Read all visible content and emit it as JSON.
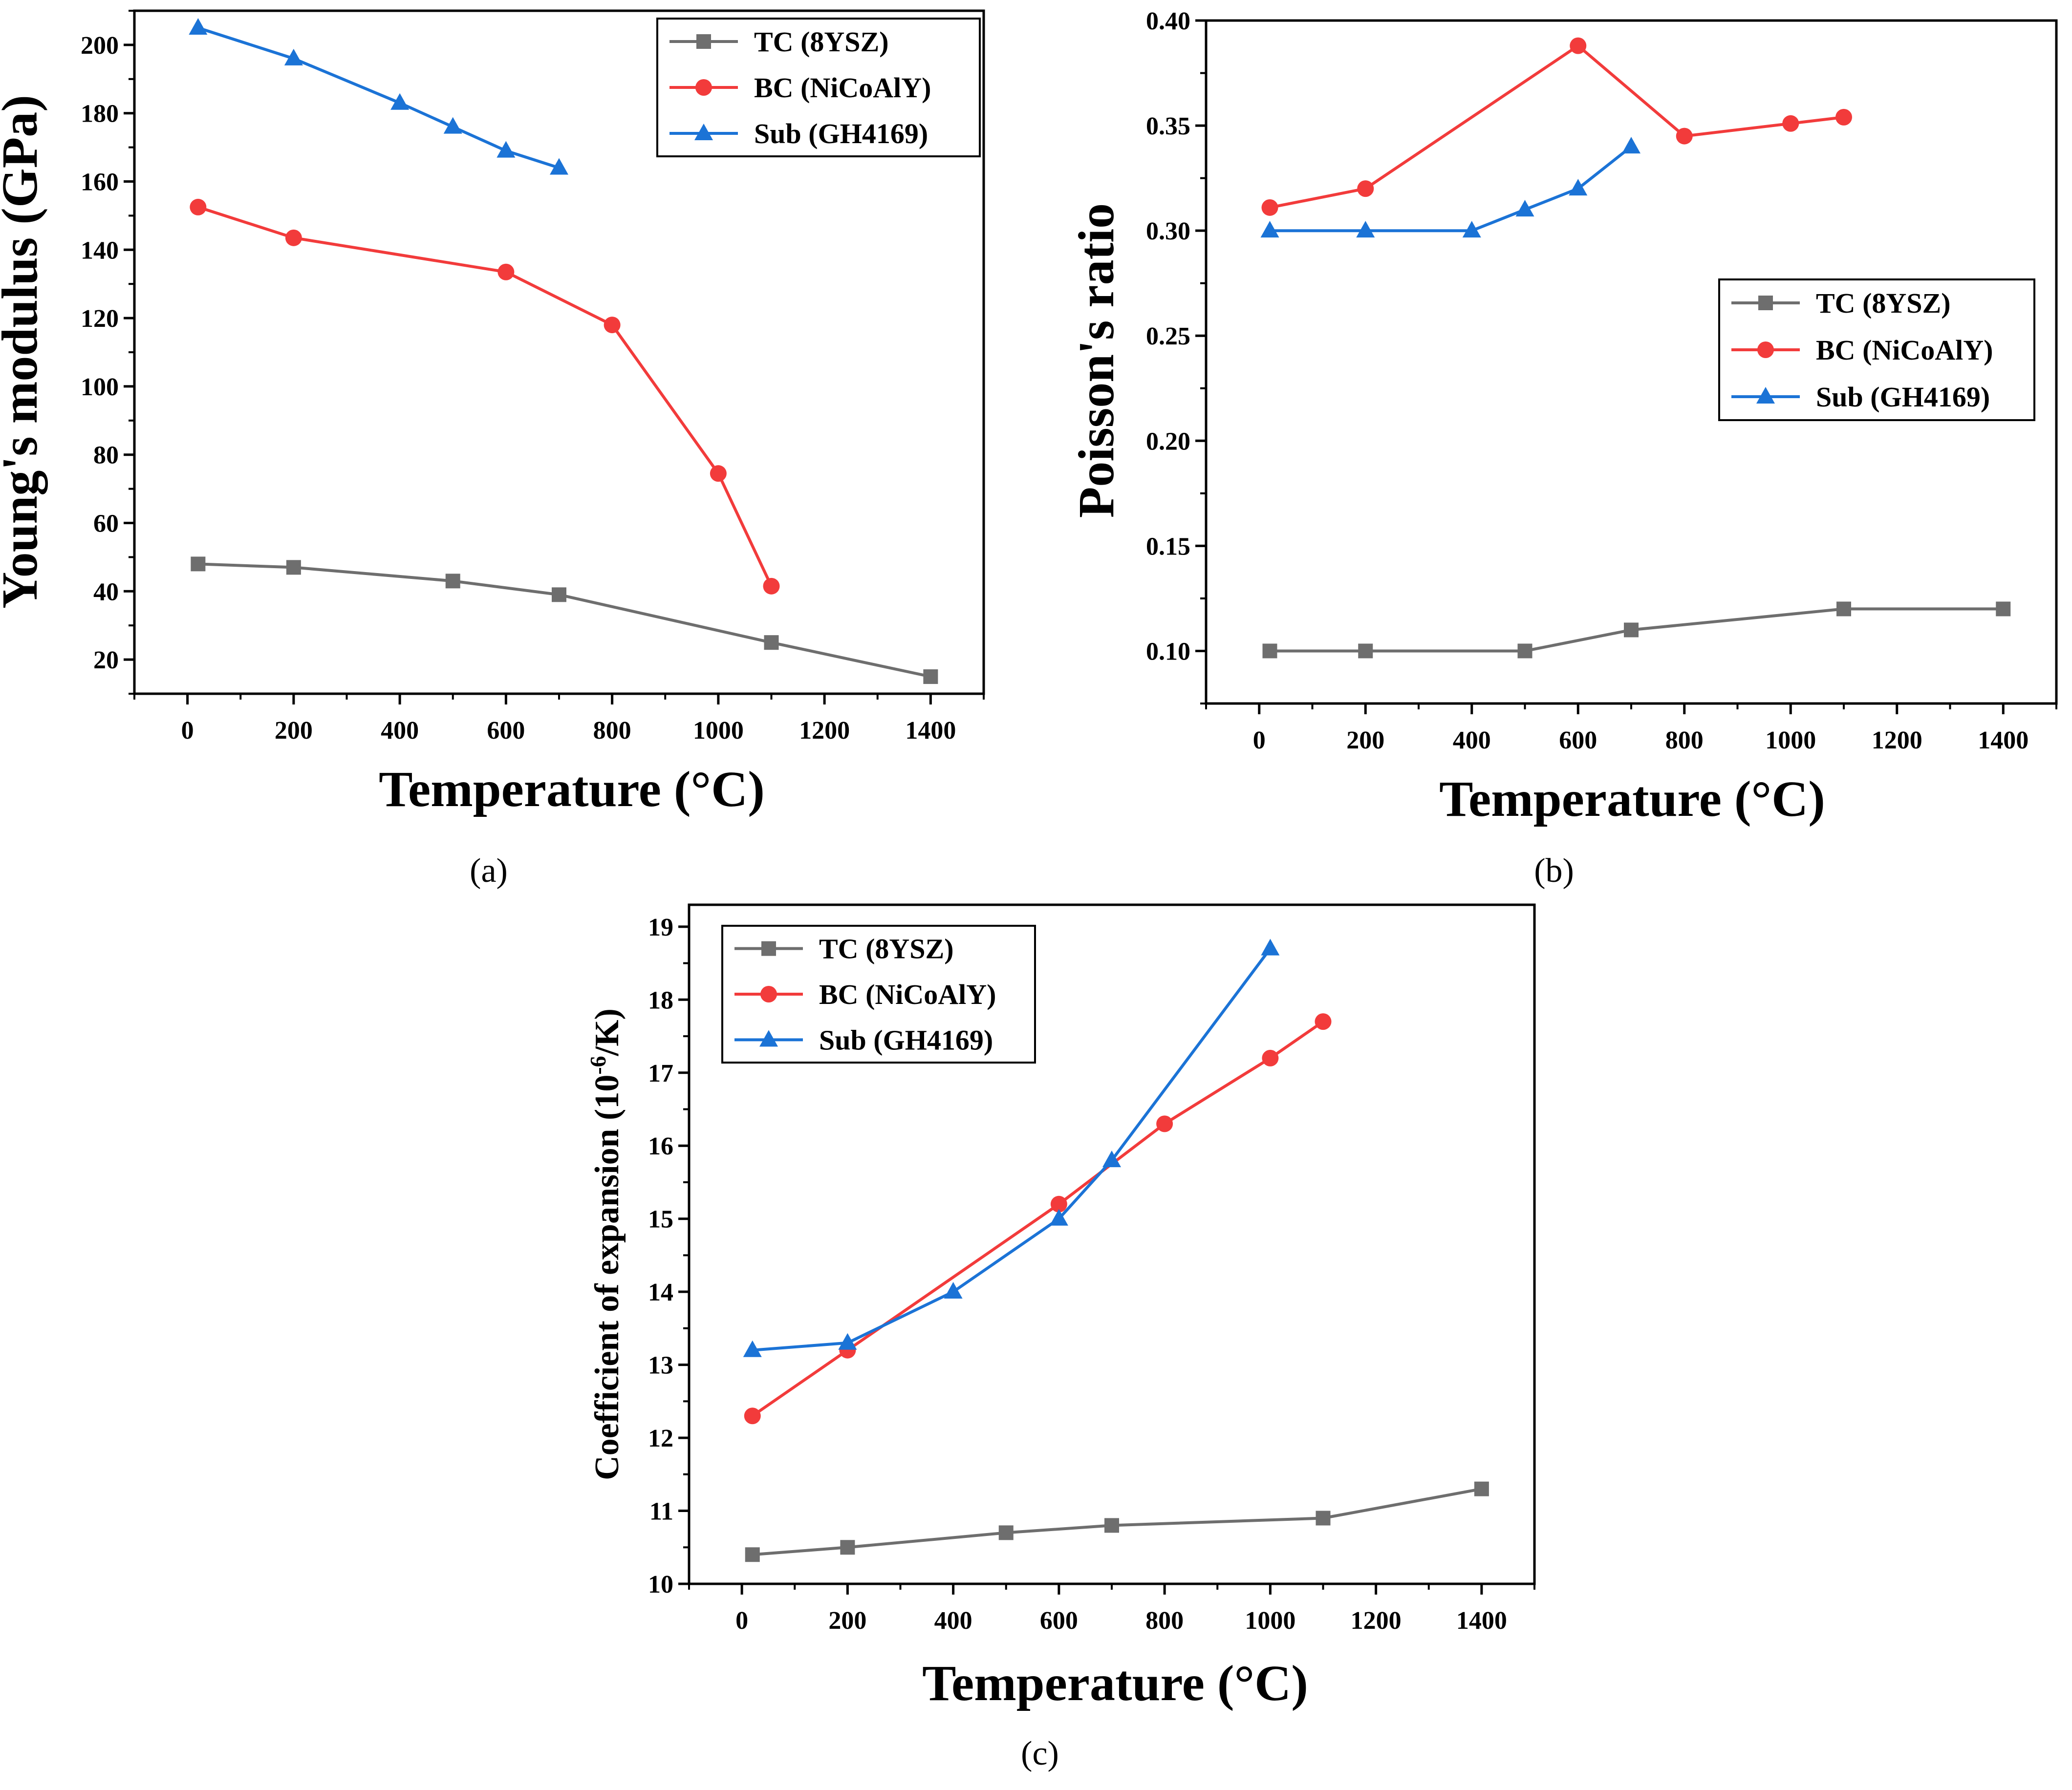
{
  "colors": {
    "TC": "#6e6e6e",
    "BC": "#f23b3b",
    "Sub": "#1b73d6"
  },
  "chart_data": [
    {
      "type": "line",
      "panel_label": "(a)",
      "xlabel": "Temperature (°C)",
      "ylabel": "Young's modulus (GPa)",
      "xlim": [
        -100,
        1500
      ],
      "ylim": [
        10,
        210
      ],
      "xticks": [
        0,
        200,
        400,
        600,
        800,
        1000,
        1200,
        1400
      ],
      "yticks": [
        20,
        40,
        60,
        80,
        100,
        120,
        140,
        160,
        180,
        200
      ],
      "legend_position": "top-right",
      "series": [
        {
          "key": "TC",
          "name": "TC (8YSZ)",
          "marker": "square",
          "x": [
            20,
            200,
            500,
            700,
            1100,
            1400
          ],
          "y": [
            48,
            47,
            43,
            39,
            25,
            15
          ]
        },
        {
          "key": "BC",
          "name": "BC (NiCoAlY)",
          "marker": "circle",
          "x": [
            20,
            200,
            600,
            800,
            1000,
            1100
          ],
          "y": [
            152.5,
            143.5,
            133.5,
            118,
            74.5,
            41.5
          ]
        },
        {
          "key": "Sub",
          "name": "Sub (GH4169)",
          "marker": "triangle",
          "x": [
            20,
            200,
            400,
            500,
            600,
            700
          ],
          "y": [
            205,
            196,
            183,
            176,
            169,
            164
          ]
        }
      ]
    },
    {
      "type": "line",
      "panel_label": "(b)",
      "xlabel": "Temperature (°C)",
      "ylabel": "Poisson's ratio",
      "xlim": [
        -100,
        1500
      ],
      "ylim": [
        0.075,
        0.4
      ],
      "xticks": [
        0,
        200,
        400,
        600,
        800,
        1000,
        1200,
        1400
      ],
      "yticks": [
        0.1,
        0.15,
        0.2,
        0.25,
        0.3,
        0.35,
        0.4
      ],
      "ytick_labels": [
        "0.10",
        "0.15",
        "0.20",
        "0.25",
        "0.30",
        "0.35",
        "0.40"
      ],
      "legend_position": "middle-right",
      "series": [
        {
          "key": "TC",
          "name": "TC (8YSZ)",
          "marker": "square",
          "x": [
            20,
            200,
            500,
            700,
            1100,
            1400
          ],
          "y": [
            0.1,
            0.1,
            0.1,
            0.11,
            0.12,
            0.12
          ]
        },
        {
          "key": "BC",
          "name": "BC (NiCoAlY)",
          "marker": "circle",
          "x": [
            20,
            200,
            600,
            800,
            1000,
            1100
          ],
          "y": [
            0.311,
            0.32,
            0.388,
            0.345,
            0.351,
            0.354
          ]
        },
        {
          "key": "Sub",
          "name": "Sub (GH4169)",
          "marker": "triangle",
          "x": [
            20,
            200,
            400,
            500,
            600,
            700
          ],
          "y": [
            0.3,
            0.3,
            0.3,
            0.31,
            0.32,
            0.34
          ]
        }
      ]
    },
    {
      "type": "line",
      "panel_label": "(c)",
      "xlabel": "Temperature (°C)",
      "ylabel": "Coefficient of expansion (10",
      "ylabel_sup": "-6",
      "ylabel_suffix": "/K)",
      "xlim": [
        -100,
        1500
      ],
      "ylim": [
        10,
        19.3
      ],
      "xticks": [
        0,
        200,
        400,
        600,
        800,
        1000,
        1200,
        1400
      ],
      "yticks": [
        10,
        11,
        12,
        13,
        14,
        15,
        16,
        17,
        18,
        19
      ],
      "legend_position": "top-left",
      "series": [
        {
          "key": "TC",
          "name": "TC (8YSZ)",
          "marker": "square",
          "x": [
            20,
            200,
            500,
            700,
            1100,
            1400
          ],
          "y": [
            10.4,
            10.5,
            10.7,
            10.8,
            10.9,
            11.3
          ]
        },
        {
          "key": "BC",
          "name": "BC (NiCoAlY)",
          "marker": "circle",
          "x": [
            20,
            200,
            600,
            800,
            1000,
            1100
          ],
          "y": [
            12.3,
            13.2,
            15.2,
            16.3,
            17.2,
            17.7
          ]
        },
        {
          "key": "Sub",
          "name": "Sub (GH4169)",
          "marker": "triangle",
          "x": [
            20,
            200,
            400,
            600,
            700,
            1000
          ],
          "y": [
            13.2,
            13.3,
            14.0,
            15.0,
            15.8,
            18.7
          ]
        }
      ]
    }
  ]
}
